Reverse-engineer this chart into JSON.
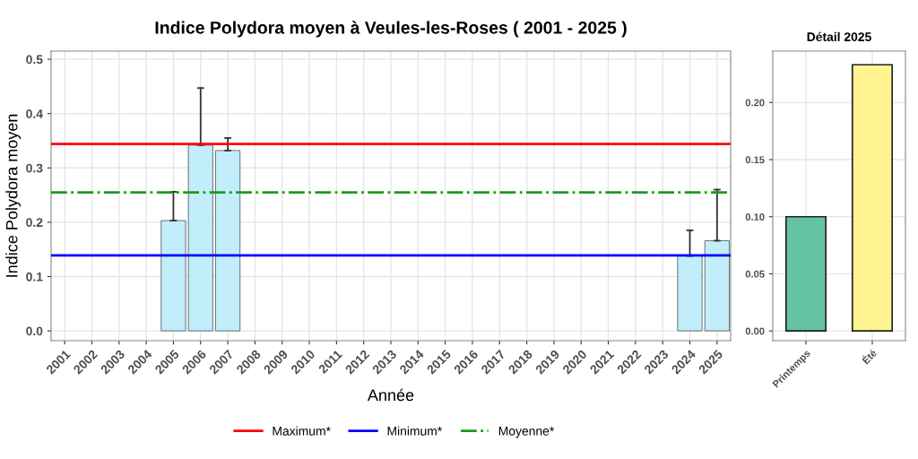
{
  "chart_data": [
    {
      "type": "bar",
      "title": "Indice Polydora moyen à Veules-les-Roses ( 2001 - 2025 )",
      "xlabel": "Année",
      "ylabel": "Indice Polydora moyen",
      "categories": [
        "2001",
        "2002",
        "2003",
        "2004",
        "2005",
        "2006",
        "2007",
        "2008",
        "2009",
        "2010",
        "2011",
        "2012",
        "2013",
        "2014",
        "2015",
        "2016",
        "2017",
        "2018",
        "2019",
        "2020",
        "2021",
        "2022",
        "2023",
        "2024",
        "2025"
      ],
      "values": [
        null,
        null,
        null,
        null,
        0.203,
        0.342,
        0.332,
        null,
        null,
        null,
        null,
        null,
        null,
        null,
        null,
        null,
        null,
        null,
        null,
        null,
        null,
        null,
        null,
        0.138,
        0.166
      ],
      "errors": [
        null,
        null,
        null,
        null,
        [
          0.203,
          0.256
        ],
        [
          0.342,
          0.447
        ],
        [
          0.332,
          0.355
        ],
        null,
        null,
        null,
        null,
        null,
        null,
        null,
        null,
        null,
        null,
        null,
        null,
        null,
        null,
        null,
        null,
        [
          0.138,
          0.185
        ],
        [
          0.166,
          0.26
        ]
      ],
      "color": "#c2edfb",
      "ref_lines": [
        {
          "axis": "y",
          "value": 0.344,
          "label": "Maximum*",
          "color": "#ff0000",
          "line_style": "solid"
        },
        {
          "axis": "y",
          "value": 0.139,
          "label": "Minimum*",
          "color": "#0000ff",
          "line_style": "solid"
        },
        {
          "axis": "y",
          "value": 0.255,
          "label": "Moyenne*",
          "color": "#1e9a1e",
          "line_style": "dashdot"
        }
      ],
      "ylim": [
        -0.018,
        0.515
      ],
      "yticks": [
        {
          "value": 0,
          "label": "0.0"
        },
        {
          "value": 0.1,
          "label": "0.1"
        },
        {
          "value": 0.2,
          "label": "0.2"
        },
        {
          "value": 0.3,
          "label": "0.3"
        },
        {
          "value": 0.4,
          "label": "0.4"
        },
        {
          "value": 0.5,
          "label": "0.5"
        }
      ],
      "grid": true,
      "legend": "bottom"
    },
    {
      "type": "bar",
      "title": "Détail 2025",
      "categories": [
        "Printemps",
        "Été"
      ],
      "values": [
        0.1,
        0.233
      ],
      "colors": [
        "#66c2a5",
        "#fff48f"
      ],
      "ylim": [
        -0.0085,
        0.245
      ],
      "yticks": [
        {
          "value": 0,
          "label": "0.00"
        },
        {
          "value": 0.05,
          "label": "0.05"
        },
        {
          "value": 0.1,
          "label": "0.10"
        },
        {
          "value": 0.15,
          "label": "0.15"
        },
        {
          "value": 0.2,
          "label": "0.20"
        }
      ],
      "grid": true
    }
  ]
}
